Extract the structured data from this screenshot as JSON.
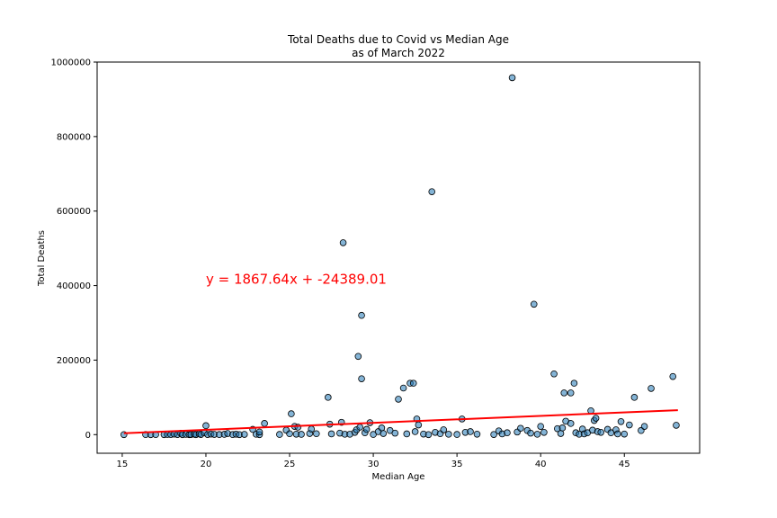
{
  "chart_data": {
    "type": "scatter",
    "title": "Total Deaths due to Covid vs Median Age",
    "subtitle": "as of March 2022",
    "xlabel": "Median Age",
    "ylabel": "Total Deaths",
    "xlim": [
      13.5,
      49.5
    ],
    "ylim": [
      -50000,
      1000000
    ],
    "xticks": [
      15,
      20,
      25,
      30,
      35,
      40,
      45
    ],
    "yticks": [
      0,
      200000,
      400000,
      600000,
      800000,
      1000000
    ],
    "grid": false,
    "point_color": "#1f77b4",
    "point_edge_color": "#000000",
    "regression": {
      "slope": 1867.64,
      "intercept": -24389.01,
      "x_range": [
        15.1,
        48.2
      ],
      "color": "#ff0000",
      "equation": "y = 1867.64x + -24389.01",
      "equation_pos": [
        20,
        405000
      ]
    },
    "points": [
      [
        15.1,
        0
      ],
      [
        16.4,
        200
      ],
      [
        16.7,
        0
      ],
      [
        17.0,
        200
      ],
      [
        17.5,
        0
      ],
      [
        17.7,
        500
      ],
      [
        17.9,
        200
      ],
      [
        18.1,
        1500
      ],
      [
        18.3,
        300
      ],
      [
        18.5,
        3500
      ],
      [
        18.6,
        0
      ],
      [
        18.8,
        800
      ],
      [
        19.0,
        0
      ],
      [
        19.1,
        300
      ],
      [
        19.3,
        1200
      ],
      [
        19.4,
        0
      ],
      [
        19.6,
        2000
      ],
      [
        19.7,
        300
      ],
      [
        19.9,
        5000
      ],
      [
        20.0,
        24000
      ],
      [
        20.1,
        300
      ],
      [
        20.3,
        1500
      ],
      [
        20.5,
        600
      ],
      [
        20.8,
        200
      ],
      [
        21.1,
        800
      ],
      [
        21.3,
        3000
      ],
      [
        21.6,
        200
      ],
      [
        21.8,
        1200
      ],
      [
        22.0,
        0
      ],
      [
        22.3,
        600
      ],
      [
        22.8,
        14000
      ],
      [
        23.0,
        1000
      ],
      [
        23.2,
        0
      ],
      [
        23.5,
        30000
      ],
      [
        23.2,
        7000
      ],
      [
        24.4,
        500
      ],
      [
        24.8,
        12000
      ],
      [
        25.0,
        2500
      ],
      [
        25.1,
        56000
      ],
      [
        25.3,
        22000
      ],
      [
        25.5,
        20000
      ],
      [
        25.4,
        1200
      ],
      [
        25.7,
        800
      ],
      [
        26.2,
        3000
      ],
      [
        26.3,
        15000
      ],
      [
        26.6,
        2500
      ],
      [
        27.3,
        100000
      ],
      [
        27.4,
        28000
      ],
      [
        27.5,
        2000
      ],
      [
        28.0,
        4000
      ],
      [
        28.1,
        33000
      ],
      [
        28.2,
        515000
      ],
      [
        28.3,
        1000
      ],
      [
        28.6,
        1000
      ],
      [
        28.9,
        6000
      ],
      [
        29.0,
        13000
      ],
      [
        29.1,
        210000
      ],
      [
        29.2,
        20000
      ],
      [
        29.3,
        150000
      ],
      [
        29.3,
        320000
      ],
      [
        29.5,
        5000
      ],
      [
        29.6,
        14000
      ],
      [
        29.8,
        32000
      ],
      [
        30.0,
        500
      ],
      [
        30.3,
        8000
      ],
      [
        30.5,
        18000
      ],
      [
        30.6,
        3000
      ],
      [
        31.0,
        11000
      ],
      [
        31.3,
        4000
      ],
      [
        31.5,
        95000
      ],
      [
        31.8,
        125000
      ],
      [
        32.0,
        2000
      ],
      [
        32.2,
        138000
      ],
      [
        32.4,
        138000
      ],
      [
        32.5,
        8000
      ],
      [
        32.6,
        42000
      ],
      [
        32.7,
        26000
      ],
      [
        33.0,
        1500
      ],
      [
        33.3,
        0
      ],
      [
        33.5,
        652000
      ],
      [
        33.7,
        6000
      ],
      [
        34.0,
        2500
      ],
      [
        34.2,
        13000
      ],
      [
        34.5,
        1000
      ],
      [
        35.0,
        500
      ],
      [
        35.3,
        42000
      ],
      [
        35.5,
        6000
      ],
      [
        35.8,
        8000
      ],
      [
        36.2,
        1200
      ],
      [
        37.2,
        300
      ],
      [
        37.5,
        10000
      ],
      [
        37.7,
        2000
      ],
      [
        38.0,
        5000
      ],
      [
        38.3,
        958000
      ],
      [
        38.6,
        7000
      ],
      [
        38.8,
        17000
      ],
      [
        39.2,
        11000
      ],
      [
        39.4,
        4000
      ],
      [
        39.6,
        350000
      ],
      [
        39.8,
        1000
      ],
      [
        40.0,
        22000
      ],
      [
        40.2,
        6000
      ],
      [
        40.8,
        163000
      ],
      [
        41.0,
        16000
      ],
      [
        41.2,
        3000
      ],
      [
        41.3,
        18000
      ],
      [
        41.4,
        112000
      ],
      [
        41.5,
        36000
      ],
      [
        41.8,
        112000
      ],
      [
        41.8,
        30000
      ],
      [
        42.0,
        138000
      ],
      [
        42.1,
        5000
      ],
      [
        42.3,
        1000
      ],
      [
        42.5,
        15000
      ],
      [
        42.6,
        2000
      ],
      [
        42.8,
        5000
      ],
      [
        43.0,
        64000
      ],
      [
        43.1,
        12000
      ],
      [
        43.2,
        38000
      ],
      [
        43.3,
        44000
      ],
      [
        43.4,
        8000
      ],
      [
        43.6,
        6000
      ],
      [
        44.0,
        14000
      ],
      [
        44.2,
        5000
      ],
      [
        44.5,
        13000
      ],
      [
        44.6,
        2000
      ],
      [
        44.8,
        35000
      ],
      [
        45.0,
        1500
      ],
      [
        45.3,
        26000
      ],
      [
        45.6,
        100000
      ],
      [
        46.0,
        11000
      ],
      [
        46.2,
        22000
      ],
      [
        46.6,
        124000
      ],
      [
        47.9,
        156000
      ],
      [
        48.1,
        25000
      ]
    ]
  }
}
